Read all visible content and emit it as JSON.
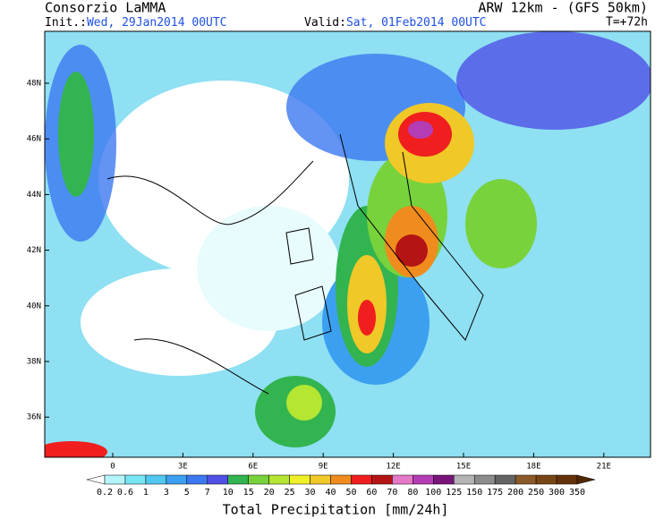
{
  "header": {
    "title": "Consorzio LaMMA",
    "model": "ARW 12km - (GFS 50km)",
    "init_label": "Init.:",
    "init_time": "Wed, 29Jan2014 00UTC",
    "valid_label": "Valid:",
    "valid_time": "Sat, 01Feb2014 00UTC",
    "lead": "T=+72h"
  },
  "map": {
    "lat_labels": [
      "48N",
      "46N",
      "44N",
      "42N",
      "40N",
      "38N",
      "36N"
    ],
    "lon_labels": [
      "0",
      "3E",
      "6E",
      "9E",
      "12E",
      "15E",
      "18E",
      "21E"
    ]
  },
  "colorbar": {
    "labels": [
      "0.2",
      "0.6",
      "1",
      "3",
      "5",
      "7",
      "10",
      "15",
      "20",
      "25",
      "30",
      "40",
      "50",
      "60",
      "70",
      "80",
      "100",
      "125",
      "150",
      "175",
      "200",
      "250",
      "300",
      "350"
    ],
    "colors": [
      "#ffffff",
      "#b4f5fa",
      "#78e6f5",
      "#50c8f0",
      "#3ca0f0",
      "#3c78f0",
      "#5050e6",
      "#32b450",
      "#78d23c",
      "#b4e632",
      "#f0f028",
      "#f0c828",
      "#f08c1e",
      "#f01e1e",
      "#b41414",
      "#e678c8",
      "#b43cb4",
      "#78147a",
      "#b4b4b4",
      "#8c8c8c",
      "#646464",
      "#8c5a28",
      "#784614",
      "#643208",
      "#502800"
    ],
    "title": "Total Precipitation [mm/24h]"
  }
}
